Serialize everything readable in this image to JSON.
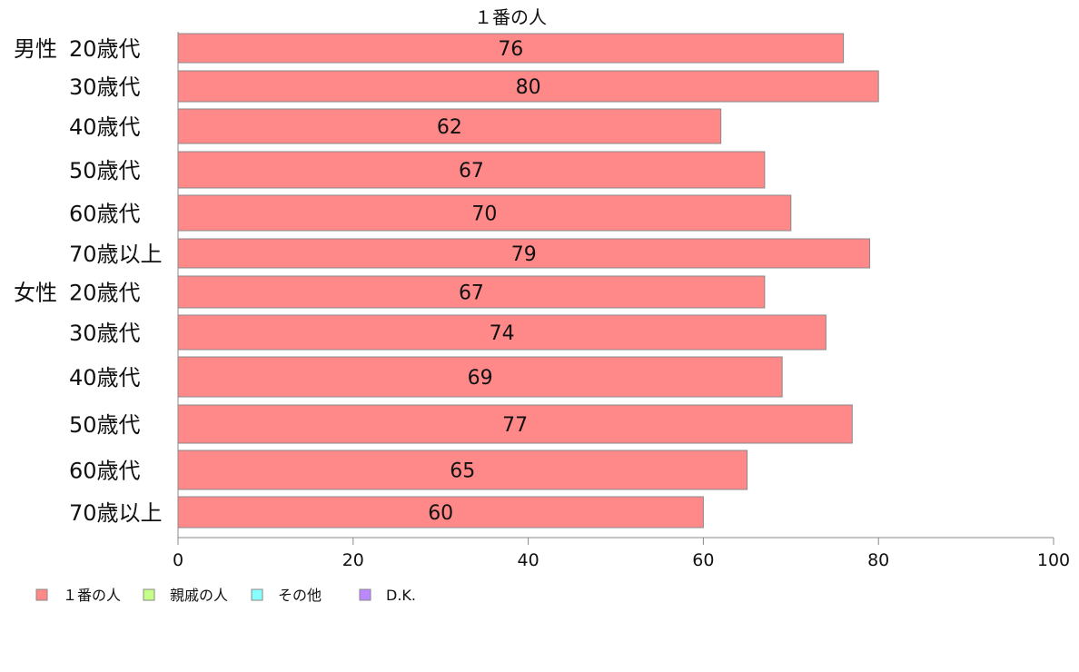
{
  "chart_data": {
    "type": "bar",
    "orientation": "horizontal",
    "title": "１番の人",
    "groups": [
      {
        "label": "男性",
        "categories": [
          "20歳代",
          "30歳代",
          "40歳代",
          "50歳代",
          "60歳代",
          "70歳以上"
        ]
      },
      {
        "label": "女性",
        "categories": [
          "20歳代",
          "30歳代",
          "40歳代",
          "50歳代",
          "60歳代",
          "70歳以上"
        ]
      }
    ],
    "series": [
      {
        "name": "１番の人",
        "color": "#ff8888",
        "values": [
          76,
          80,
          62,
          67,
          70,
          79,
          67,
          74,
          69,
          77,
          65,
          60
        ]
      },
      {
        "name": "親戚の人",
        "color": "#c6ff88",
        "values": []
      },
      {
        "name": "その他",
        "color": "#88ffff",
        "values": []
      },
      {
        "name": "D.K.",
        "color": "#bb88ff",
        "values": []
      }
    ],
    "data_labels": [
      "76",
      "80",
      "62",
      "67",
      "70",
      "79",
      "67",
      "74",
      "69",
      "77",
      "65",
      "60"
    ],
    "xlim": [
      0,
      100
    ],
    "xticks": [
      0,
      20,
      40,
      60,
      80,
      100
    ],
    "xtick_labels": [
      "0",
      "20",
      "40",
      "60",
      "80",
      "100"
    ],
    "xlabel": "",
    "ylabel": "",
    "grid": false,
    "legend_position": "bottom-left",
    "bar_stroke_color": "#888888",
    "axis_color": "#888888"
  }
}
